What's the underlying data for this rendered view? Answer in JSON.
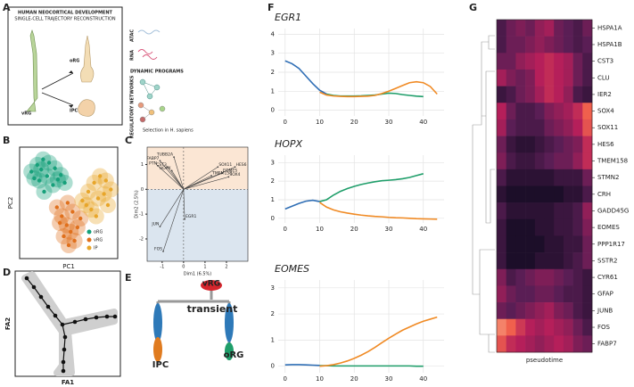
{
  "panel_a": {
    "panel": "A",
    "title": "HUMAN NEOCORTICAL DEVELOPMENT",
    "subtitle": "SINGLE-CELL TRAJECTORY RECONSTRUCTION",
    "cells": [
      "vRG",
      "oRG",
      "IPC"
    ],
    "modalities": [
      "ATAC",
      "RNA"
    ],
    "dynamic_programs": "DYNAMIC PROGRAMS",
    "regulatory_networks": "REGULATORY NETWORKS",
    "selection": "Selection in H. sapiens"
  },
  "panel_d": {
    "panel": "D",
    "xlabel": "FA1",
    "ylabel": "FA2"
  },
  "panel_e": {
    "panel": "E",
    "labels": [
      "vRG",
      "transient",
      "IPC",
      "oRG"
    ]
  },
  "chart_data": [
    {
      "type": "scatter",
      "panel": "B",
      "xlabel": "PC1",
      "ylabel": "PC2",
      "xlim": [
        0,
        10
      ],
      "ylim": [
        0,
        10
      ],
      "legend": "lower right",
      "series": [
        {
          "name": "oRG",
          "color": "#16a07a",
          "x": [
            1.2,
            1.8,
            2.4,
            3.0,
            3.6,
            4.2,
            2.0,
            2.8,
            3.4,
            1.5,
            2.5,
            4.6,
            3.9,
            2.2
          ],
          "values": [
            7.8,
            8.4,
            8.9,
            8.6,
            8.1,
            7.5,
            7.0,
            7.4,
            6.6,
            7.2,
            6.0,
            6.8,
            7.1,
            8.0
          ]
        },
        {
          "name": "vRG",
          "color": "#e0701c",
          "x": [
            3.8,
            4.3,
            4.8,
            5.2,
            5.6,
            4.5,
            5.0,
            5.9,
            6.2,
            4.1,
            5.4,
            4.9
          ],
          "values": [
            4.6,
            3.8,
            3.0,
            2.4,
            1.6,
            2.0,
            1.2,
            2.8,
            3.6,
            3.2,
            4.2,
            5.0
          ]
        },
        {
          "name": "IP",
          "color": "#e8a62a",
          "x": [
            6.4,
            7.0,
            7.6,
            8.2,
            8.8,
            9.3,
            7.3,
            8.0,
            8.6,
            6.8,
            7.8,
            9.0
          ],
          "values": [
            5.2,
            6.0,
            6.8,
            7.4,
            7.0,
            6.2,
            4.4,
            5.4,
            5.8,
            4.8,
            3.8,
            4.8
          ]
        }
      ]
    },
    {
      "type": "biplot",
      "panel": "C",
      "xlabel": "Dim1 (6.5%)",
      "ylabel": "Dim2 (2.5%)",
      "xlim": [
        -1.7,
        3.0
      ],
      "ylim": [
        -2.9,
        1.7
      ],
      "xticks": [
        -1,
        0,
        1,
        2
      ],
      "yticks": [
        -2,
        -1,
        0,
        1
      ],
      "color": "#444444",
      "upper_color": "#fbe6d4",
      "lower_color": "#dbe5ef",
      "categories": [
        "FABP7",
        "TUBB2A",
        "PTN",
        "CST3",
        "HOPX",
        "SOX11",
        "HES6",
        "EOMES",
        "TMEM158",
        "SOX4",
        "JUN",
        "EGR1",
        "FOS"
      ],
      "x": [
        -1.1,
        -0.45,
        -1.2,
        -0.75,
        -0.55,
        1.6,
        2.4,
        1.8,
        1.3,
        2.1,
        -1.1,
        0.05,
        -0.95
      ],
      "values": [
        1.15,
        1.3,
        0.95,
        0.9,
        0.75,
        0.9,
        0.9,
        0.65,
        0.55,
        0.5,
        -1.5,
        -1.2,
        -2.5
      ]
    },
    {
      "type": "line",
      "panel": "F",
      "title": "EGR1",
      "grid": true,
      "xlim": [
        -2,
        46
      ],
      "ylim": [
        -0.3,
        4.3
      ],
      "xticks": [
        0,
        10,
        20,
        30,
        40
      ],
      "yticks": [
        0,
        1,
        2,
        3,
        4
      ],
      "x": [
        0,
        2,
        4,
        6,
        8,
        10,
        12,
        14,
        16,
        18,
        20,
        22,
        24,
        26,
        28,
        30,
        32,
        34,
        36,
        38,
        40,
        42,
        44
      ],
      "series": [
        {
          "color": "#2f6eb5",
          "values": [
            2.6,
            2.45,
            2.2,
            1.8,
            1.4,
            1.05,
            0.85,
            null,
            null,
            null,
            null,
            null,
            null,
            null,
            null,
            null,
            null,
            null,
            null,
            null,
            null,
            null,
            null
          ]
        },
        {
          "color": "#1f9e6a",
          "values": [
            null,
            null,
            null,
            null,
            null,
            null,
            0.85,
            0.78,
            0.75,
            0.75,
            0.75,
            0.76,
            0.78,
            0.8,
            0.85,
            0.9,
            0.88,
            0.82,
            0.78,
            0.74,
            0.72,
            null,
            null
          ]
        },
        {
          "color": "#f08a24",
          "values": [
            null,
            null,
            null,
            null,
            null,
            0.95,
            0.8,
            0.75,
            0.73,
            0.72,
            0.72,
            0.73,
            0.74,
            0.78,
            0.88,
            1.0,
            1.15,
            1.3,
            1.45,
            1.5,
            1.45,
            1.25,
            0.85
          ]
        }
      ]
    },
    {
      "type": "line",
      "panel": "F",
      "title": "HOPX",
      "grid": true,
      "xlim": [
        -2,
        46
      ],
      "ylim": [
        -0.25,
        3.4
      ],
      "xticks": [
        0,
        10,
        20,
        30,
        40
      ],
      "yticks": [
        0,
        1,
        2,
        3
      ],
      "x": [
        0,
        2,
        4,
        6,
        8,
        10,
        12,
        14,
        16,
        18,
        20,
        22,
        24,
        26,
        28,
        30,
        32,
        34,
        36,
        38,
        40,
        42,
        44
      ],
      "series": [
        {
          "color": "#2f6eb5",
          "values": [
            0.5,
            0.65,
            0.8,
            0.92,
            0.97,
            0.9,
            null,
            null,
            null,
            null,
            null,
            null,
            null,
            null,
            null,
            null,
            null,
            null,
            null,
            null,
            null,
            null,
            null
          ]
        },
        {
          "color": "#1f9e6a",
          "values": [
            null,
            null,
            null,
            null,
            null,
            0.9,
            1.0,
            1.25,
            1.45,
            1.6,
            1.72,
            1.82,
            1.9,
            1.97,
            2.02,
            2.05,
            2.08,
            2.13,
            2.2,
            2.3,
            2.4,
            null,
            null
          ]
        },
        {
          "color": "#f08a24",
          "values": [
            null,
            null,
            null,
            null,
            null,
            0.85,
            0.6,
            0.45,
            0.35,
            0.28,
            0.22,
            0.17,
            0.13,
            0.1,
            0.08,
            0.05,
            0.03,
            0.02,
            0.0,
            -0.02,
            -0.03,
            -0.04,
            -0.05
          ]
        }
      ]
    },
    {
      "type": "line",
      "panel": "F",
      "title": "EOMES",
      "grid": true,
      "xlim": [
        -2,
        46
      ],
      "ylim": [
        -0.25,
        3.3
      ],
      "xticks": [
        0,
        10,
        20,
        30,
        40
      ],
      "yticks": [
        0,
        1,
        2,
        3
      ],
      "x": [
        0,
        2,
        4,
        6,
        8,
        10,
        12,
        14,
        16,
        18,
        20,
        22,
        24,
        26,
        28,
        30,
        32,
        34,
        36,
        38,
        40,
        42,
        44
      ],
      "series": [
        {
          "color": "#2f6eb5",
          "values": [
            0.05,
            0.06,
            0.06,
            0.05,
            0.04,
            0.03,
            null,
            null,
            null,
            null,
            null,
            null,
            null,
            null,
            null,
            null,
            null,
            null,
            null,
            null,
            null,
            null,
            null
          ]
        },
        {
          "color": "#1f9e6a",
          "values": [
            null,
            null,
            null,
            null,
            null,
            0.02,
            0.02,
            0.01,
            0.01,
            0.01,
            0.01,
            0.01,
            0.01,
            0.01,
            0.01,
            0.01,
            0.01,
            0.01,
            0.01,
            0.0,
            0.0,
            null,
            null
          ]
        },
        {
          "color": "#f08a24",
          "values": [
            null,
            null,
            null,
            null,
            null,
            0.0,
            0.02,
            0.06,
            0.12,
            0.2,
            0.3,
            0.42,
            0.56,
            0.72,
            0.9,
            1.07,
            1.23,
            1.38,
            1.5,
            1.62,
            1.72,
            1.8,
            1.88
          ]
        }
      ]
    },
    {
      "type": "heatmap",
      "panel": "G",
      "xlabel": "pseudotime",
      "vlim": [
        0,
        1
      ],
      "colorscale": [
        "#0d0a1e",
        "#5a1e55",
        "#b51f5a",
        "#f0604d",
        "#f9b494"
      ],
      "categories": [
        "HSPA1A",
        "HSPA1B",
        "CST3",
        "CLU",
        "IER2",
        "SOX4",
        "SOX11",
        "HES6",
        "TMEM158",
        "STMN2",
        "CRH",
        "GADD45G",
        "EOMES",
        "PPP1R17",
        "SSTR2",
        "CYR61",
        "GFAP",
        "JUNB",
        "FOS",
        "FABP7"
      ],
      "values": [
        [
          0.2,
          0.3,
          0.35,
          0.3,
          0.4,
          0.45,
          0.3,
          0.25,
          0.2,
          0.3
        ],
        [
          0.2,
          0.3,
          0.3,
          0.35,
          0.4,
          0.35,
          0.3,
          0.25,
          0.2,
          0.25
        ],
        [
          0.3,
          0.3,
          0.4,
          0.45,
          0.5,
          0.55,
          0.5,
          0.45,
          0.3,
          0.2
        ],
        [
          0.45,
          0.35,
          0.3,
          0.35,
          0.5,
          0.55,
          0.5,
          0.45,
          0.3,
          0.2
        ],
        [
          0.15,
          0.2,
          0.3,
          0.35,
          0.45,
          0.55,
          0.5,
          0.4,
          0.2,
          0.15
        ],
        [
          0.5,
          0.3,
          0.2,
          0.2,
          0.25,
          0.35,
          0.4,
          0.45,
          0.55,
          0.75
        ],
        [
          0.45,
          0.25,
          0.2,
          0.2,
          0.2,
          0.3,
          0.35,
          0.4,
          0.5,
          0.7
        ],
        [
          0.3,
          0.15,
          0.1,
          0.1,
          0.15,
          0.2,
          0.25,
          0.3,
          0.35,
          0.55
        ],
        [
          0.35,
          0.2,
          0.15,
          0.15,
          0.2,
          0.25,
          0.3,
          0.3,
          0.4,
          0.55
        ],
        [
          0.2,
          0.1,
          0.1,
          0.1,
          0.1,
          0.1,
          0.15,
          0.15,
          0.15,
          0.3
        ],
        [
          0.1,
          0.05,
          0.05,
          0.05,
          0.05,
          0.05,
          0.05,
          0.1,
          0.1,
          0.2
        ],
        [
          0.2,
          0.1,
          0.1,
          0.1,
          0.1,
          0.1,
          0.15,
          0.15,
          0.2,
          0.4
        ],
        [
          0.15,
          0.05,
          0.05,
          0.05,
          0.1,
          0.1,
          0.15,
          0.15,
          0.2,
          0.35
        ],
        [
          0.15,
          0.05,
          0.05,
          0.05,
          0.05,
          0.1,
          0.1,
          0.15,
          0.15,
          0.3
        ],
        [
          0.15,
          0.05,
          0.05,
          0.05,
          0.1,
          0.1,
          0.1,
          0.15,
          0.2,
          0.3
        ],
        [
          0.35,
          0.2,
          0.25,
          0.3,
          0.35,
          0.35,
          0.3,
          0.25,
          0.2,
          0.15
        ],
        [
          0.4,
          0.3,
          0.25,
          0.25,
          0.3,
          0.3,
          0.25,
          0.2,
          0.2,
          0.15
        ],
        [
          0.3,
          0.25,
          0.3,
          0.35,
          0.4,
          0.45,
          0.35,
          0.3,
          0.2,
          0.15
        ],
        [
          0.85,
          0.75,
          0.6,
          0.5,
          0.45,
          0.5,
          0.45,
          0.4,
          0.3,
          0.2
        ],
        [
          0.7,
          0.55,
          0.5,
          0.45,
          0.4,
          0.45,
          0.5,
          0.45,
          0.35,
          0.3
        ]
      ]
    }
  ]
}
